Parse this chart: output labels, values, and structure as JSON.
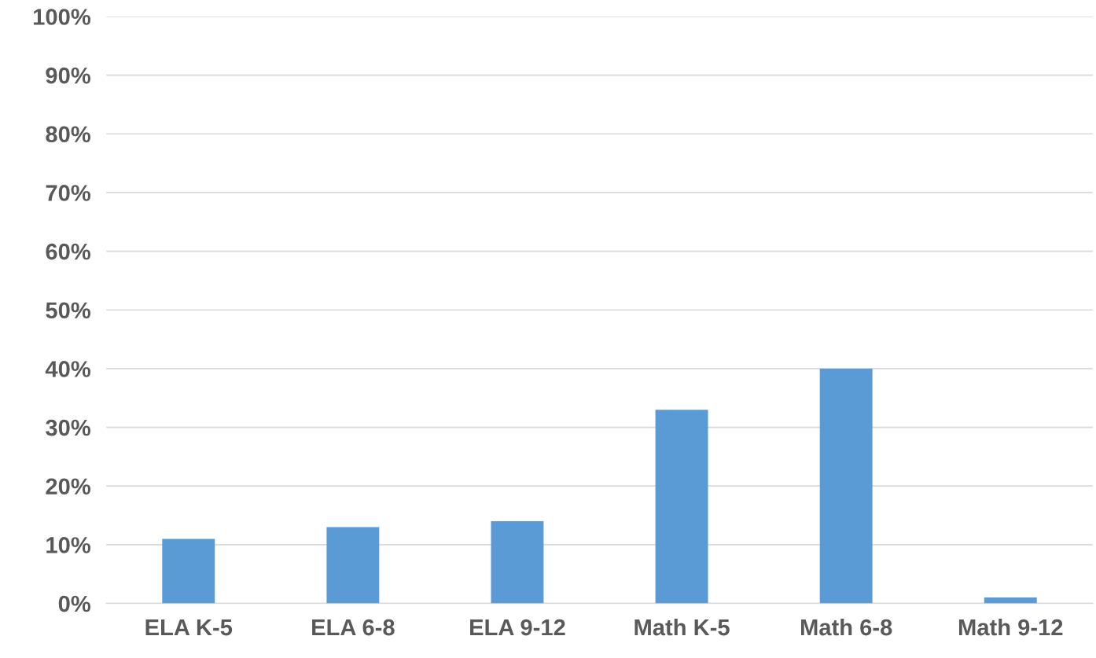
{
  "chart_data": {
    "type": "bar",
    "categories": [
      "ELA K-5",
      "ELA 6-8",
      "ELA 9-12",
      "Math K-5",
      "Math 6-8",
      "Math 9-12"
    ],
    "values": [
      11,
      13,
      14,
      33,
      40,
      1
    ],
    "color": "#5b9bd5",
    "ylim": [
      0,
      100
    ],
    "yticks": [
      {
        "value": 0,
        "label": "0%"
      },
      {
        "value": 10,
        "label": "10%"
      },
      {
        "value": 20,
        "label": "20%"
      },
      {
        "value": 30,
        "label": "30%"
      },
      {
        "value": 40,
        "label": "40%"
      },
      {
        "value": 50,
        "label": "50%"
      },
      {
        "value": 60,
        "label": "60%"
      },
      {
        "value": 70,
        "label": "70%"
      },
      {
        "value": 80,
        "label": "80%"
      },
      {
        "value": 90,
        "label": "90%"
      },
      {
        "value": 100,
        "label": "100%"
      }
    ],
    "grid": "y"
  }
}
